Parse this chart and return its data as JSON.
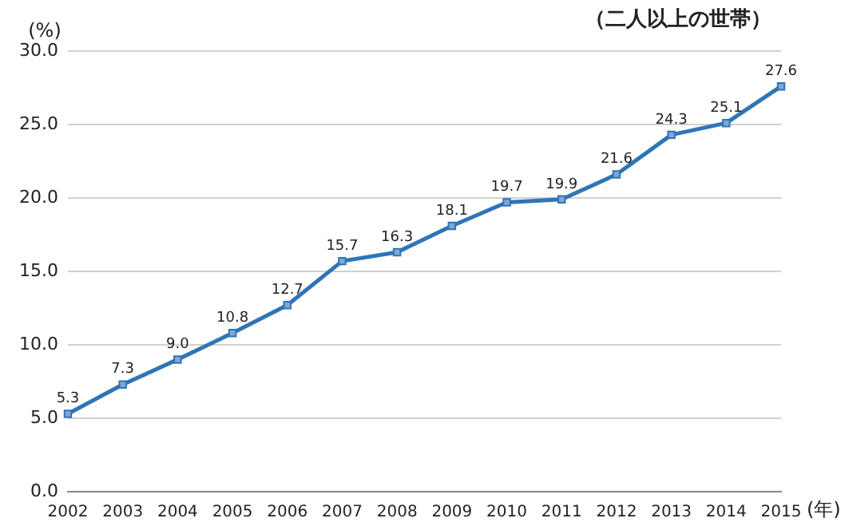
{
  "chart_data": {
    "type": "line",
    "annotations": [
      "（二人以上の世帯）"
    ],
    "ylabel": "(%)",
    "xlabel": "(年)",
    "categories": [
      "2002",
      "2003",
      "2004",
      "2005",
      "2006",
      "2007",
      "2008",
      "2009",
      "2010",
      "2011",
      "2012",
      "2013",
      "2014",
      "2015"
    ],
    "series": [
      {
        "color": "#2e75b6",
        "values": [
          5.3,
          7.3,
          9.0,
          10.8,
          12.7,
          15.7,
          16.3,
          18.1,
          19.7,
          19.9,
          21.6,
          24.3,
          25.1,
          27.6
        ],
        "value_labels": [
          "5.3",
          "7.3",
          "9.0",
          "10.8",
          "12.7",
          "15.7",
          "16.3",
          "18.1",
          "19.7",
          "19.9",
          "21.6",
          "24.3",
          "25.1",
          "27.6"
        ]
      }
    ],
    "ylim": [
      0,
      30
    ],
    "yticks": [
      {
        "value": 0,
        "label": "0.0"
      },
      {
        "value": 5,
        "label": "5.0"
      },
      {
        "value": 10,
        "label": "10.0"
      },
      {
        "value": 15,
        "label": "15.0"
      },
      {
        "value": 20,
        "label": "20.0"
      },
      {
        "value": 25,
        "label": "25.0"
      },
      {
        "value": 30,
        "label": "30.0"
      }
    ],
    "grid": "y",
    "marker": "square",
    "line_style": "solid",
    "legend": false
  }
}
